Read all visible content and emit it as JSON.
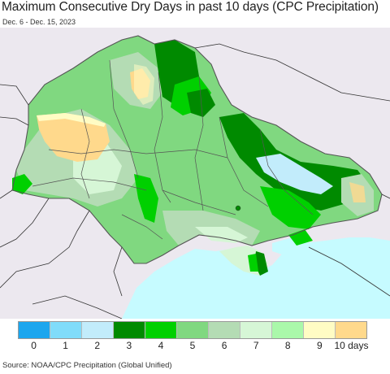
{
  "title": "Maximum Consecutive Dry Days in past 10 days (CPC Precipitation)",
  "subtitle": "Dec. 6 - Dec. 15, 2023",
  "legend": {
    "colors": [
      "#1ca6ee",
      "#80dcfa",
      "#c2ecfb",
      "#008a00",
      "#00d000",
      "#80d880",
      "#b4dcb4",
      "#d6f6d6",
      "#aaf8aa",
      "#fffcc4",
      "#ffd98c"
    ],
    "ticks": [
      "0",
      "1",
      "2",
      "3",
      "4",
      "5",
      "6",
      "7",
      "8",
      "9",
      "10 days"
    ]
  },
  "source": "Source: NOAA/CPC Precipitation (Global Unified)",
  "colors": {
    "sea": "#c6fbff",
    "outside": "#ece8ef",
    "border": "#555555"
  }
}
